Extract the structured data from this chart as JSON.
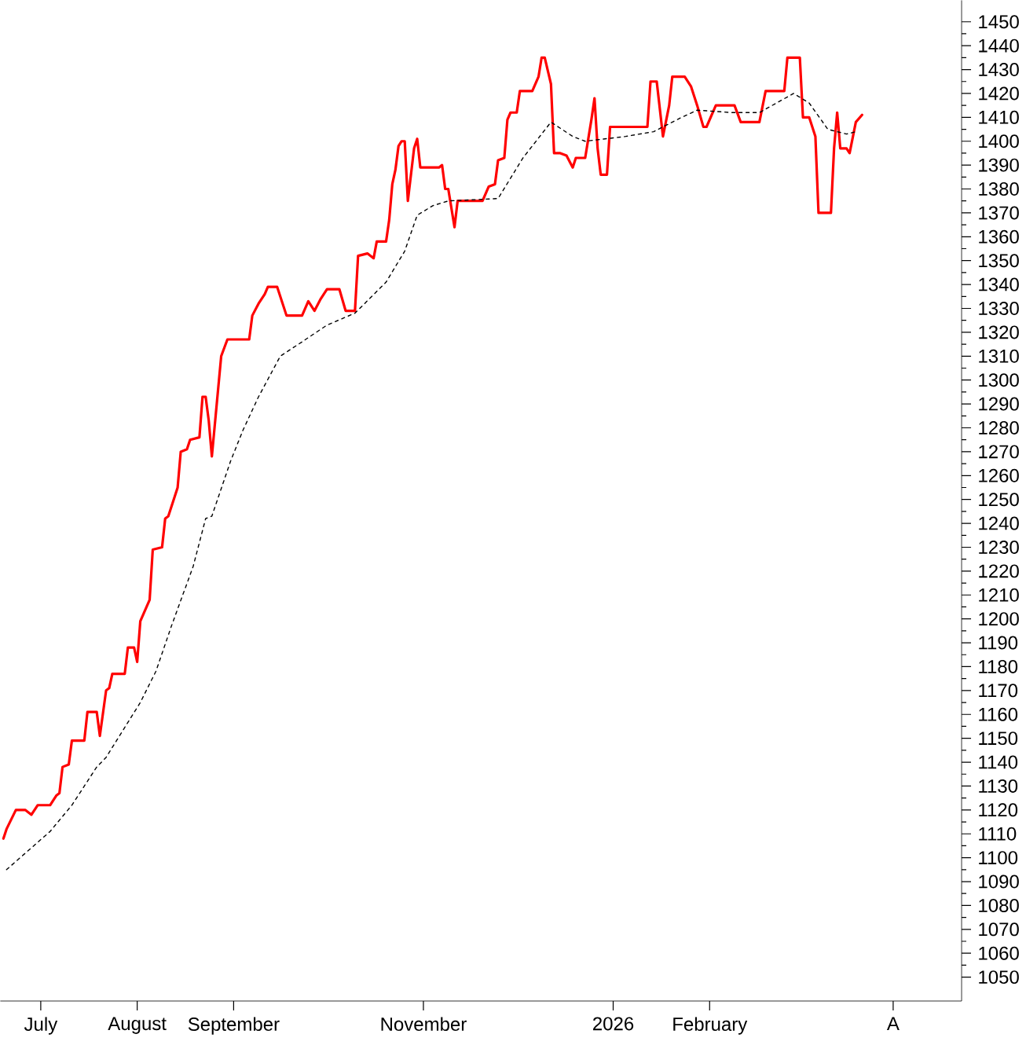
{
  "chart_data": {
    "type": "line",
    "xlim": [
      "2025-06-18",
      "2026-04-23"
    ],
    "ylim": [
      1040,
      1459
    ],
    "xticks": [
      {
        "value": "2025-07-01",
        "label": "July"
      },
      {
        "value": "2025-08-01",
        "label": "August"
      },
      {
        "value": "2025-09-01",
        "label": "September"
      },
      {
        "value": "2025-11-01",
        "label": "November"
      },
      {
        "value": "2026-01-01",
        "label": "2026"
      },
      {
        "value": "2026-02-01",
        "label": "February"
      },
      {
        "value": "2026-04-01",
        "label": "A"
      }
    ],
    "yticks": [
      1050,
      1060,
      1070,
      1080,
      1090,
      1100,
      1110,
      1120,
      1130,
      1140,
      1150,
      1160,
      1170,
      1180,
      1190,
      1200,
      1210,
      1220,
      1230,
      1240,
      1250,
      1260,
      1270,
      1280,
      1290,
      1300,
      1310,
      1320,
      1330,
      1340,
      1350,
      1360,
      1370,
      1380,
      1390,
      1400,
      1410,
      1420,
      1430,
      1440,
      1450
    ],
    "series": [
      {
        "color": "#ff0000",
        "line_style": "solid",
        "x": [
          "2025-06-19",
          "2025-06-20",
          "2025-06-23",
          "2025-06-26",
          "2025-06-28",
          "2025-06-30",
          "2025-07-04",
          "2025-07-06",
          "2025-07-07",
          "2025-07-08",
          "2025-07-10",
          "2025-07-11",
          "2025-07-15",
          "2025-07-16",
          "2025-07-19",
          "2025-07-20",
          "2025-07-22",
          "2025-07-23",
          "2025-07-24",
          "2025-07-28",
          "2025-07-29",
          "2025-07-31",
          "2025-08-01",
          "2025-08-02",
          "2025-08-05",
          "2025-08-06",
          "2025-08-09",
          "2025-08-10",
          "2025-08-11",
          "2025-08-14",
          "2025-08-15",
          "2025-08-17",
          "2025-08-18",
          "2025-08-21",
          "2025-08-22",
          "2025-08-23",
          "2025-08-24",
          "2025-08-25",
          "2025-08-27",
          "2025-08-28",
          "2025-08-30",
          "2025-09-06",
          "2025-09-07",
          "2025-09-09",
          "2025-09-11",
          "2025-09-12",
          "2025-09-15",
          "2025-09-18",
          "2025-09-23",
          "2025-09-25",
          "2025-09-27",
          "2025-09-29",
          "2025-10-01",
          "2025-10-05",
          "2025-10-07",
          "2025-10-10",
          "2025-10-11",
          "2025-10-14",
          "2025-10-16",
          "2025-10-17",
          "2025-10-20",
          "2025-10-21",
          "2025-10-22",
          "2025-10-23",
          "2025-10-24",
          "2025-10-25",
          "2025-10-26",
          "2025-10-27",
          "2025-10-29",
          "2025-10-30",
          "2025-10-31",
          "2025-11-06",
          "2025-11-07",
          "2025-11-08",
          "2025-11-09",
          "2025-11-11",
          "2025-11-12",
          "2025-11-20",
          "2025-11-22",
          "2025-11-24",
          "2025-11-25",
          "2025-11-27",
          "2025-11-28",
          "2025-11-29",
          "2025-12-01",
          "2025-12-02",
          "2025-12-06",
          "2025-12-08",
          "2025-12-09",
          "2025-12-10",
          "2025-12-12",
          "2025-12-13",
          "2025-12-15",
          "2025-12-17",
          "2025-12-19",
          "2025-12-20",
          "2025-12-23",
          "2025-12-25",
          "2025-12-26",
          "2025-12-27",
          "2025-12-28",
          "2025-12-30",
          "2025-12-31",
          "2026-01-12",
          "2026-01-13",
          "2026-01-15",
          "2026-01-17",
          "2026-01-19",
          "2026-01-20",
          "2026-01-24",
          "2026-01-26",
          "2026-01-28",
          "2026-01-30",
          "2026-01-31",
          "2026-02-03",
          "2026-02-09",
          "2026-02-11",
          "2026-02-17",
          "2026-02-19",
          "2026-02-25",
          "2026-02-26",
          "2026-03-02",
          "2026-03-03",
          "2026-03-05",
          "2026-03-07",
          "2026-03-08",
          "2026-03-12",
          "2026-03-13",
          "2026-03-14",
          "2026-03-15",
          "2026-03-17",
          "2026-03-18",
          "2026-03-20",
          "2026-03-22"
        ],
        "values": [
          1108,
          1112,
          1120,
          1120,
          1118,
          1122,
          1122,
          1126,
          1127,
          1138,
          1139,
          1149,
          1149,
          1161,
          1161,
          1151,
          1170,
          1171,
          1177,
          1177,
          1188,
          1188,
          1182,
          1199,
          1208,
          1229,
          1230,
          1242,
          1243,
          1255,
          1270,
          1271,
          1275,
          1276,
          1293,
          1293,
          1283,
          1268,
          1296,
          1310,
          1317,
          1317,
          1327,
          1332,
          1336,
          1339,
          1339,
          1327,
          1327,
          1333,
          1329,
          1334,
          1338,
          1338,
          1329,
          1329,
          1352,
          1353,
          1351,
          1358,
          1358,
          1367,
          1382,
          1388,
          1398,
          1400,
          1400,
          1375,
          1397,
          1401,
          1389,
          1389,
          1390,
          1380,
          1380,
          1364,
          1375,
          1375,
          1381,
          1382,
          1392,
          1393,
          1409,
          1412,
          1412,
          1421,
          1421,
          1427,
          1435,
          1435,
          1424,
          1395,
          1395,
          1394,
          1389,
          1393,
          1393,
          1409,
          1418,
          1397,
          1386,
          1386,
          1406,
          1406,
          1425,
          1425,
          1402,
          1415,
          1427,
          1427,
          1423,
          1415,
          1406,
          1406,
          1415,
          1415,
          1408,
          1408,
          1421,
          1421,
          1435,
          1435,
          1410,
          1410,
          1402,
          1370,
          1370,
          1397,
          1412,
          1397,
          1397,
          1395,
          1408,
          1411
        ]
      },
      {
        "color": "#000000",
        "line_style": "dashed",
        "x": [
          "2025-06-20",
          "2025-07-04",
          "2025-07-11",
          "2025-07-19",
          "2025-07-22",
          "2025-08-02",
          "2025-08-07",
          "2025-08-12",
          "2025-08-19",
          "2025-08-23",
          "2025-08-25",
          "2025-08-31",
          "2025-09-04",
          "2025-09-09",
          "2025-09-16",
          "2025-09-23",
          "2025-10-01",
          "2025-10-10",
          "2025-10-20",
          "2025-10-26",
          "2025-10-30",
          "2025-11-04",
          "2025-11-09",
          "2025-11-25",
          "2025-12-03",
          "2025-12-12",
          "2025-12-19",
          "2025-12-23",
          "2026-01-05",
          "2026-01-14",
          "2026-01-23",
          "2026-01-28",
          "2026-02-08",
          "2026-02-17",
          "2026-02-28",
          "2026-03-05",
          "2026-03-11",
          "2026-03-17",
          "2026-03-20"
        ],
        "values": [
          1095,
          1111,
          1122,
          1138,
          1142,
          1165,
          1178,
          1197,
          1222,
          1242,
          1243,
          1266,
          1279,
          1293,
          1310,
          1316,
          1323,
          1328,
          1341,
          1354,
          1369,
          1373,
          1375,
          1376,
          1393,
          1408,
          1402,
          1400,
          1402,
          1404,
          1410,
          1413,
          1412,
          1412,
          1420,
          1416,
          1405,
          1403,
          1404
        ]
      }
    ]
  }
}
